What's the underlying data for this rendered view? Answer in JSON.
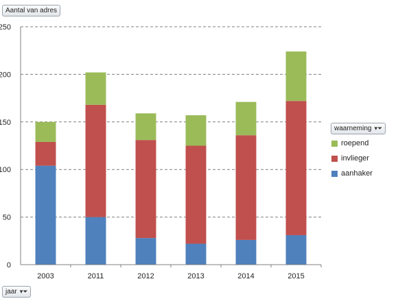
{
  "pivot": {
    "value_field_label": "Aantal van adres",
    "axis_field_label": "jaar",
    "legend_field_label": "waarneming",
    "filter_icon": "filter-dropdown-icon"
  },
  "chart_data": {
    "type": "bar",
    "stacked": true,
    "categories": [
      "2003",
      "2011",
      "2012",
      "2013",
      "2014",
      "2015"
    ],
    "series": [
      {
        "name": "aanhaker",
        "color": "#4f81bd",
        "values": [
          104,
          50,
          28,
          22,
          26,
          31
        ]
      },
      {
        "name": "invlieger",
        "color": "#c0504d",
        "values": [
          25,
          118,
          103,
          103,
          110,
          141
        ]
      },
      {
        "name": "roepend",
        "color": "#9bbb59",
        "values": [
          21,
          34,
          28,
          32,
          35,
          52
        ]
      }
    ],
    "legend_order": [
      "roepend",
      "invlieger",
      "aanhaker"
    ],
    "ylim": [
      0,
      250
    ],
    "yticks": [
      "0",
      "50",
      "100",
      "150",
      "200",
      "250"
    ],
    "gridlines": "dashed horizontal",
    "legend_position": "right"
  }
}
